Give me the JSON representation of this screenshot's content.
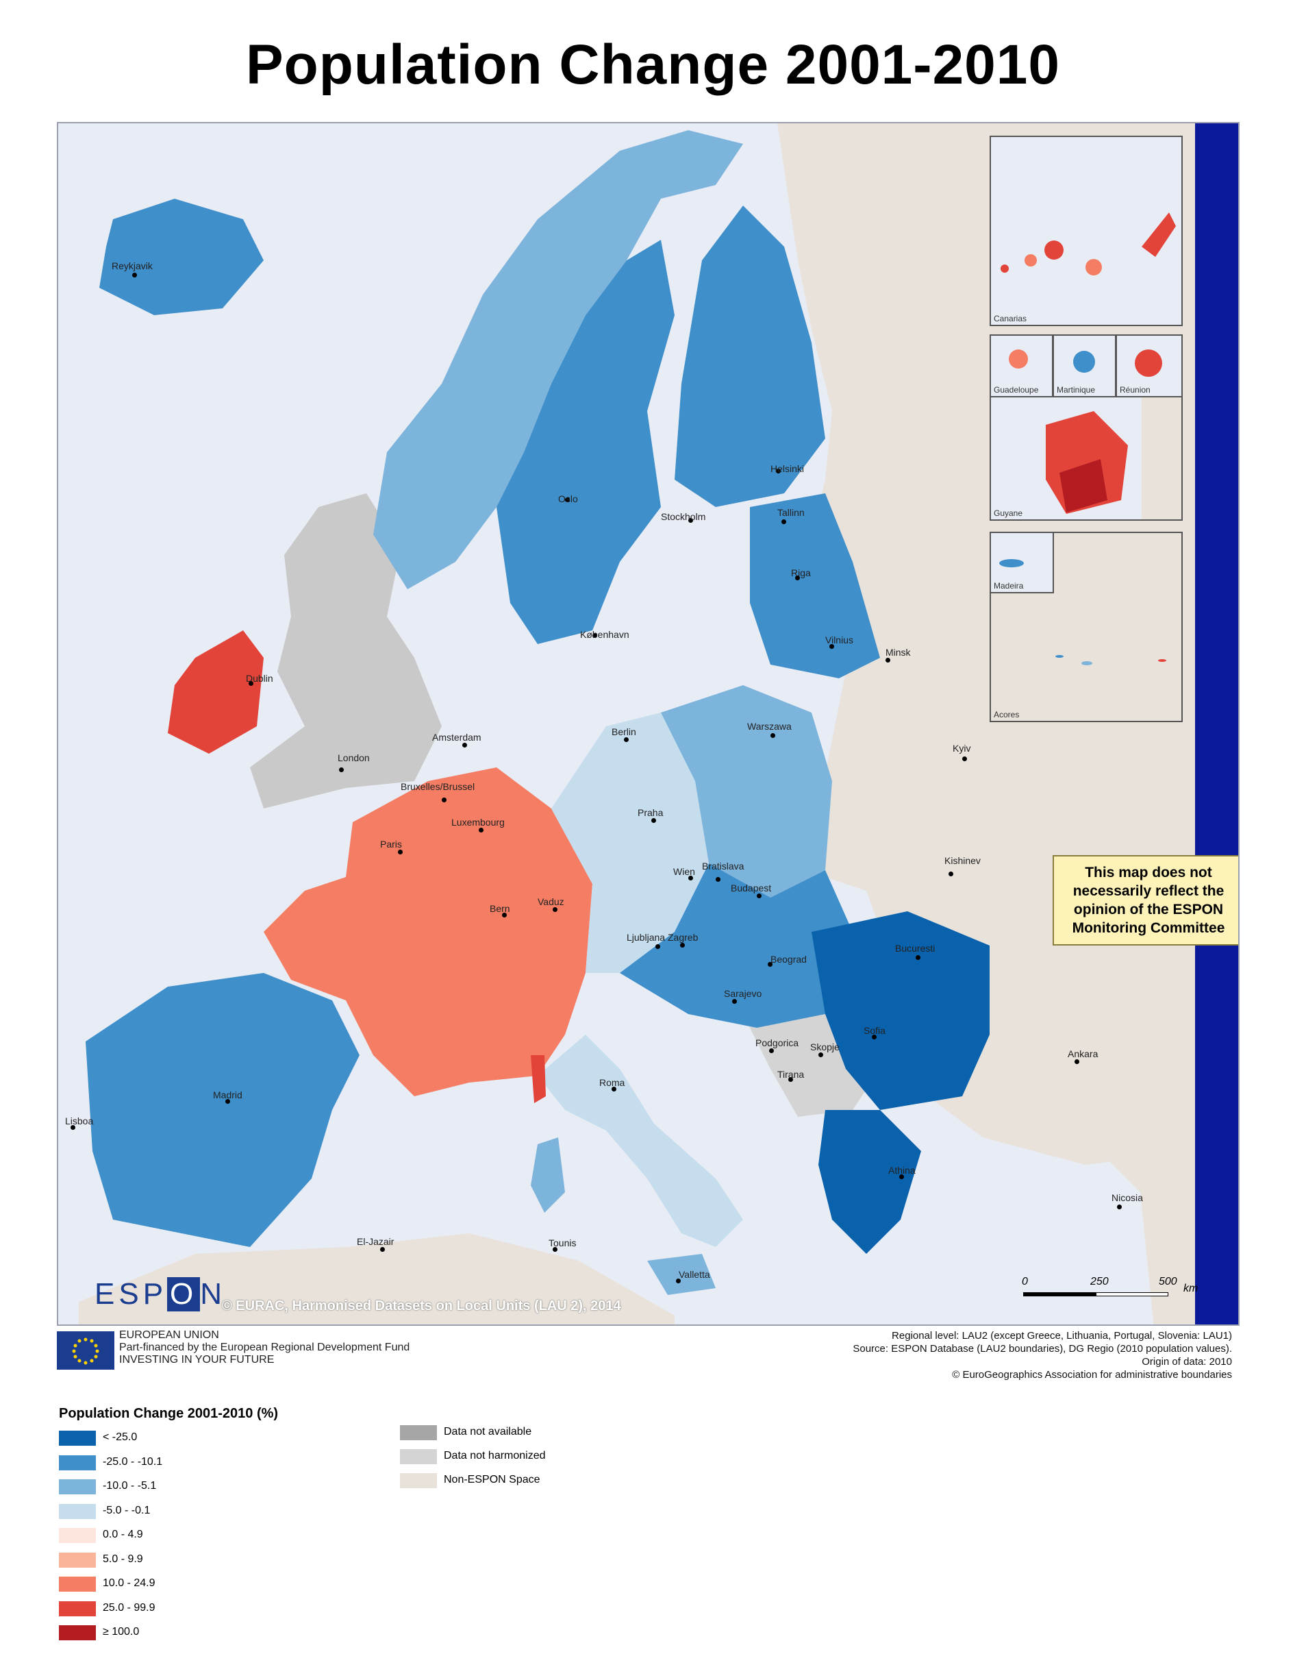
{
  "title": "Population Change 2001-2010",
  "places": [
    {
      "name": "Reykjavik"
    },
    {
      "name": "Oslo"
    },
    {
      "name": "Stockholm"
    },
    {
      "name": "Helsinki"
    },
    {
      "name": "Tallinn"
    },
    {
      "name": "Riga"
    },
    {
      "name": "Vilnius"
    },
    {
      "name": "Minsk"
    },
    {
      "name": "København"
    },
    {
      "name": "Dublin"
    },
    {
      "name": "London"
    },
    {
      "name": "Amsterdam"
    },
    {
      "name": "Bruxelles/Brussel"
    },
    {
      "name": "Luxembourg"
    },
    {
      "name": "Paris"
    },
    {
      "name": "Berlin"
    },
    {
      "name": "Warszawa"
    },
    {
      "name": "Kyiv"
    },
    {
      "name": "Praha"
    },
    {
      "name": "Wien"
    },
    {
      "name": "Bratislava"
    },
    {
      "name": "Budapest"
    },
    {
      "name": "Kishinev"
    },
    {
      "name": "Bern"
    },
    {
      "name": "Vaduz"
    },
    {
      "name": "Ljubljana"
    },
    {
      "name": "Zagreb"
    },
    {
      "name": "Beograd"
    },
    {
      "name": "Bucuresti"
    },
    {
      "name": "Sarajevo"
    },
    {
      "name": "Podgorica"
    },
    {
      "name": "Skopje"
    },
    {
      "name": "Sofia"
    },
    {
      "name": "Tirana"
    },
    {
      "name": "Ankara"
    },
    {
      "name": "Roma"
    },
    {
      "name": "Madrid"
    },
    {
      "name": "Lisboa"
    },
    {
      "name": "Athina"
    },
    {
      "name": "Nicosia"
    },
    {
      "name": "El-Jazair"
    },
    {
      "name": "Tounis"
    },
    {
      "name": "Valletta"
    }
  ],
  "insets": {
    "canarias": "Canarias",
    "guadeloupe": "Guadeloupe",
    "martinique": "Martinique",
    "reunion": "Réunion",
    "guyane": "Guyane",
    "madeira": "Madeira",
    "acores": "Acores"
  },
  "disclaimer": "This map does not necessarily reflect the opinion of the ESPON Monitoring Committee",
  "espon_logo": {
    "left": "ESP",
    "box": "O",
    "right": "N"
  },
  "copyright": "© EURAC, Harmonised Datasets on Local Units (LAU 2), 2014",
  "scale": {
    "ticks": [
      "0",
      "250",
      "500"
    ],
    "unit": "km"
  },
  "eu": {
    "line1": "EUROPEAN UNION",
    "line2": "Part-financed by the European Regional Development Fund",
    "line3": "INVESTING IN YOUR FUTURE"
  },
  "sources": {
    "line1": "Regional level: LAU2 (except Greece, Lithuania, Portugal, Slovenia: LAU1)",
    "line2": "Source: ESPON Database (LAU2 boundaries), DG Regio (2010 population values).",
    "line3": "Origin of data: 2010",
    "line4": "© EuroGeographics Association for administrative boundaries"
  },
  "legend": {
    "title": "Population Change 2001-2010 (%)",
    "classes": [
      {
        "label": "< -25.0",
        "color": "#0a62ad"
      },
      {
        "label": "-25.0 - -10.1",
        "color": "#3f8fcb"
      },
      {
        "label": "-10.0 - -5.1",
        "color": "#7db4dc"
      },
      {
        "label": "-5.0 - -0.1",
        "color": "#c6ddee"
      },
      {
        "label": "0.0 - 4.9",
        "color": "#fde4dc"
      },
      {
        "label": "5.0 - 9.9",
        "color": "#f9b49a"
      },
      {
        "label": "10.0 - 24.9",
        "color": "#f47d64"
      },
      {
        "label": "25.0 - 99.9",
        "color": "#e3443a"
      },
      {
        "label": "≥ 100.0",
        "color": "#b31d22"
      }
    ],
    "other": [
      {
        "label": "Data not available",
        "color": "#a6a6a6"
      },
      {
        "label": "Data not harmonized",
        "color": "#d4d4d4"
      },
      {
        "label": "Non-ESPON Space",
        "color": "#e8e2da"
      }
    ]
  },
  "colors": {
    "sea": "#e8ecf5",
    "non_espon": "#e8e2da",
    "frame_band": "#0a1a9a",
    "uk": "#c9c9c9"
  }
}
